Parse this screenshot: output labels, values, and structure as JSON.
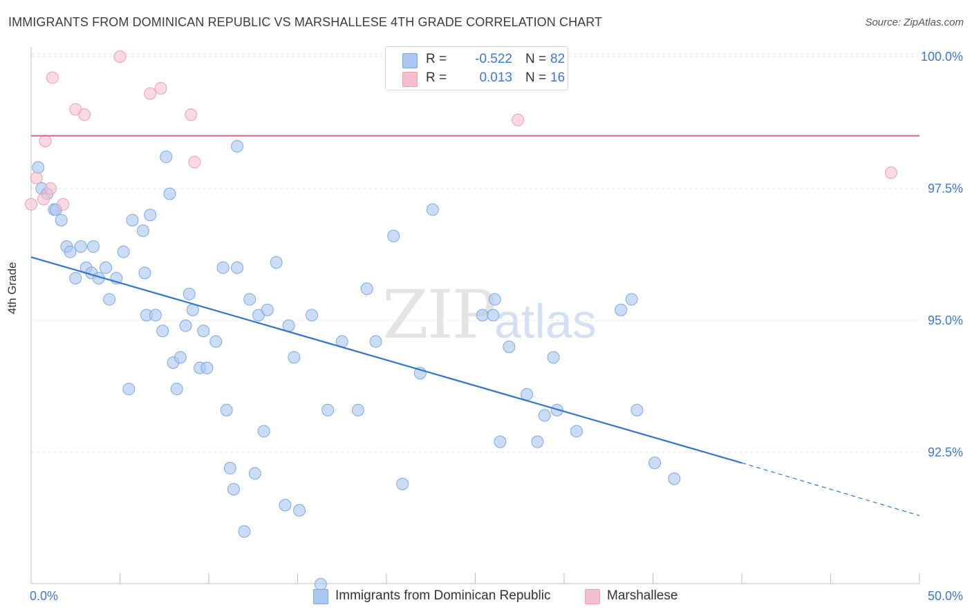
{
  "title": "IMMIGRANTS FROM DOMINICAN REPUBLIC VS MARSHALLESE 4TH GRADE CORRELATION CHART",
  "source": "Source: ZipAtlas.com",
  "watermark": {
    "zip": "ZIP",
    "atlas": "atlas"
  },
  "legend": {
    "rows": [
      {
        "r_label": "R =",
        "r_value": "-0.522",
        "n_label": "N =",
        "n_value": "82",
        "color": "#a9c7f0"
      },
      {
        "r_label": "R =",
        "r_value": "0.013",
        "n_label": "N =",
        "n_value": "16",
        "color": "#f6bfcf"
      }
    ]
  },
  "bottom_legend": [
    {
      "label": "Immigrants from Dominican Republic",
      "color": "#a9c7f0"
    },
    {
      "label": "Marshallese",
      "color": "#f6bfcf"
    }
  ],
  "colors": {
    "blue_fill": "#a9c7f0",
    "blue_stroke": "#7ea7e2",
    "blue_line": "#2f74d0",
    "pink_fill": "#f6bfcf",
    "pink_stroke": "#eb9fb5",
    "pink_line": "#e46a93",
    "tick_label": "#3a78d6",
    "grid": "#e3e3e3"
  },
  "chart_data": {
    "type": "scatter",
    "title": "IMMIGRANTS FROM DOMINICAN REPUBLIC VS MARSHALLESE 4TH GRADE CORRELATION CHART",
    "xlabel": "",
    "ylabel": "4th Grade",
    "xlim": [
      0,
      50
    ],
    "ylim": [
      90.0,
      100.25
    ],
    "x_tick_labels": [
      {
        "value": 0,
        "label": "0.0%"
      },
      {
        "value": 50,
        "label": "50.0%"
      }
    ],
    "x_minor_ticks": [
      0,
      5,
      10,
      15,
      20,
      25,
      30,
      35,
      40,
      45,
      50
    ],
    "y_tick_labels": [
      {
        "value": 100.0,
        "label": "100.0%"
      },
      {
        "value": 97.5,
        "label": "97.5%"
      },
      {
        "value": 95.0,
        "label": "95.0%"
      },
      {
        "value": 92.5,
        "label": "92.5%"
      }
    ],
    "grid": true,
    "series": [
      {
        "name": "Immigrants from Dominican Republic",
        "color": "#a9c7f0",
        "points": [
          [
            0.4,
            97.9
          ],
          [
            0.6,
            97.5
          ],
          [
            0.9,
            97.4
          ],
          [
            1.3,
            97.1
          ],
          [
            1.7,
            96.9
          ],
          [
            1.4,
            97.1
          ],
          [
            2.0,
            96.4
          ],
          [
            2.2,
            96.3
          ],
          [
            2.8,
            96.4
          ],
          [
            2.5,
            95.8
          ],
          [
            3.1,
            96.0
          ],
          [
            3.4,
            95.9
          ],
          [
            3.5,
            96.4
          ],
          [
            3.8,
            95.8
          ],
          [
            4.2,
            96.0
          ],
          [
            4.4,
            95.4
          ],
          [
            4.8,
            95.8
          ],
          [
            5.2,
            96.3
          ],
          [
            5.5,
            93.7
          ],
          [
            5.7,
            96.9
          ],
          [
            6.3,
            96.7
          ],
          [
            6.7,
            97.0
          ],
          [
            6.4,
            95.9
          ],
          [
            6.5,
            95.1
          ],
          [
            7.0,
            95.1
          ],
          [
            7.4,
            94.8
          ],
          [
            7.6,
            98.1
          ],
          [
            7.8,
            97.4
          ],
          [
            8.0,
            94.2
          ],
          [
            8.2,
            93.7
          ],
          [
            8.4,
            94.3
          ],
          [
            8.7,
            94.9
          ],
          [
            8.9,
            95.5
          ],
          [
            9.1,
            95.2
          ],
          [
            9.5,
            94.1
          ],
          [
            9.7,
            94.8
          ],
          [
            9.9,
            94.1
          ],
          [
            10.4,
            94.6
          ],
          [
            10.8,
            96.0
          ],
          [
            11.0,
            93.3
          ],
          [
            11.2,
            92.2
          ],
          [
            11.4,
            91.8
          ],
          [
            11.6,
            96.0
          ],
          [
            11.6,
            98.3
          ],
          [
            12.0,
            91.0
          ],
          [
            12.3,
            95.4
          ],
          [
            12.6,
            92.1
          ],
          [
            12.8,
            95.1
          ],
          [
            13.1,
            92.9
          ],
          [
            13.3,
            95.2
          ],
          [
            13.8,
            96.1
          ],
          [
            14.3,
            91.5
          ],
          [
            14.5,
            94.9
          ],
          [
            14.8,
            94.3
          ],
          [
            15.1,
            91.4
          ],
          [
            15.8,
            95.1
          ],
          [
            16.3,
            90.0
          ],
          [
            16.7,
            93.3
          ],
          [
            17.5,
            94.6
          ],
          [
            18.4,
            93.3
          ],
          [
            18.9,
            95.6
          ],
          [
            19.4,
            94.6
          ],
          [
            20.4,
            96.6
          ],
          [
            20.9,
            91.9
          ],
          [
            21.9,
            94.0
          ],
          [
            22.6,
            97.1
          ],
          [
            25.4,
            95.1
          ],
          [
            26.1,
            95.4
          ],
          [
            26.4,
            92.7
          ],
          [
            26.0,
            95.1
          ],
          [
            26.9,
            94.5
          ],
          [
            27.9,
            93.6
          ],
          [
            28.5,
            92.7
          ],
          [
            28.9,
            93.2
          ],
          [
            29.4,
            94.3
          ],
          [
            29.6,
            93.3
          ],
          [
            30.7,
            92.9
          ],
          [
            33.2,
            95.2
          ],
          [
            33.8,
            95.4
          ],
          [
            34.1,
            93.3
          ],
          [
            35.1,
            92.3
          ],
          [
            36.2,
            92.0
          ]
        ]
      },
      {
        "name": "Marshallese",
        "color": "#f6bfcf",
        "points": [
          [
            0.0,
            97.2
          ],
          [
            0.3,
            97.7
          ],
          [
            0.7,
            97.3
          ],
          [
            0.8,
            98.4
          ],
          [
            1.1,
            97.5
          ],
          [
            1.2,
            99.6
          ],
          [
            1.8,
            97.2
          ],
          [
            2.5,
            99.0
          ],
          [
            3.0,
            98.9
          ],
          [
            5.0,
            100.0
          ],
          [
            6.7,
            99.3
          ],
          [
            7.3,
            99.4
          ],
          [
            9.0,
            98.9
          ],
          [
            9.2,
            98.0
          ],
          [
            27.4,
            98.8
          ],
          [
            48.4,
            97.8
          ]
        ]
      }
    ],
    "trend_lines": [
      {
        "series": "Immigrants from Dominican Republic",
        "solid_from": [
          0,
          96.2
        ],
        "solid_to": [
          40.0,
          92.3
        ],
        "dashed_to": [
          50.0,
          91.3
        ]
      },
      {
        "series": "Marshallese",
        "from": [
          0,
          98.5
        ],
        "to": [
          50.0,
          98.5
        ]
      }
    ]
  }
}
